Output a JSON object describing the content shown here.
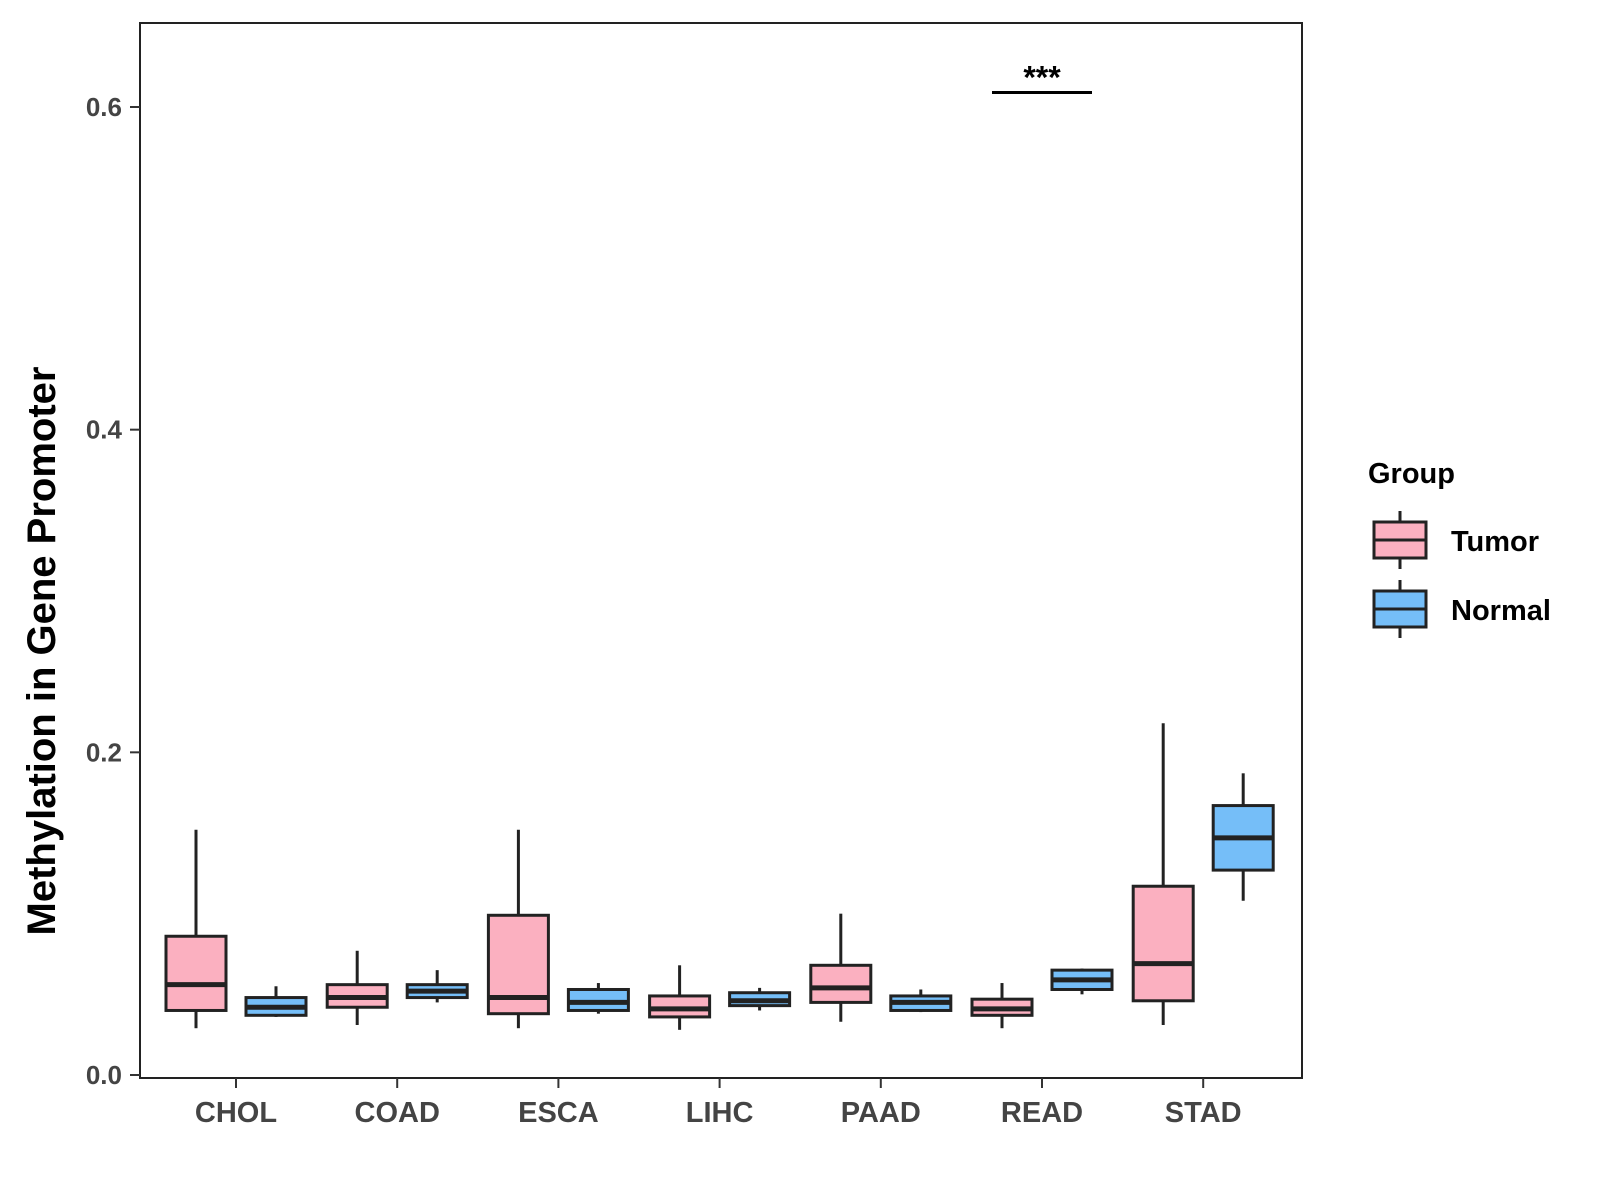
{
  "chart_data": {
    "type": "boxplot",
    "ylabel": "Methylation in Gene Promoter",
    "xlabel": "",
    "ylim": [
      0.0,
      0.65
    ],
    "yticks": [
      "0.0",
      "0.2",
      "0.4",
      "0.6"
    ],
    "categories": [
      "CHOL",
      "COAD",
      "ESCA",
      "LIHC",
      "PAAD",
      "READ",
      "STAD"
    ],
    "legend": {
      "title": "Group",
      "position": "right",
      "entries": [
        {
          "label": "Tumor",
          "color": "#FBB0C0"
        },
        {
          "label": "Normal",
          "color": "#75BEF8"
        }
      ]
    },
    "series": [
      {
        "name": "Tumor",
        "color": "#FBB0C0",
        "boxes": [
          {
            "category": "CHOL",
            "min": 0.029,
            "q1": 0.04,
            "median": 0.056,
            "q3": 0.086,
            "max": 0.152
          },
          {
            "category": "COAD",
            "min": 0.031,
            "q1": 0.042,
            "median": 0.048,
            "q3": 0.056,
            "max": 0.077
          },
          {
            "category": "ESCA",
            "min": 0.029,
            "q1": 0.038,
            "median": 0.048,
            "q3": 0.099,
            "max": 0.152
          },
          {
            "category": "LIHC",
            "min": 0.028,
            "q1": 0.036,
            "median": 0.041,
            "q3": 0.049,
            "max": 0.068
          },
          {
            "category": "PAAD",
            "min": 0.033,
            "q1": 0.045,
            "median": 0.054,
            "q3": 0.068,
            "max": 0.1
          },
          {
            "category": "READ",
            "min": 0.029,
            "q1": 0.037,
            "median": 0.041,
            "q3": 0.047,
            "max": 0.057
          },
          {
            "category": "STAD",
            "min": 0.031,
            "q1": 0.046,
            "median": 0.069,
            "q3": 0.117,
            "max": 0.218
          }
        ]
      },
      {
        "name": "Normal",
        "color": "#75BEF8",
        "boxes": [
          {
            "category": "CHOL",
            "min": 0.036,
            "q1": 0.037,
            "median": 0.042,
            "q3": 0.048,
            "max": 0.055
          },
          {
            "category": "COAD",
            "min": 0.045,
            "q1": 0.048,
            "median": 0.052,
            "q3": 0.056,
            "max": 0.065
          },
          {
            "category": "ESCA",
            "min": 0.038,
            "q1": 0.04,
            "median": 0.045,
            "q3": 0.053,
            "max": 0.057
          },
          {
            "category": "LIHC",
            "min": 0.04,
            "q1": 0.043,
            "median": 0.046,
            "q3": 0.051,
            "max": 0.054
          },
          {
            "category": "PAAD",
            "min": 0.039,
            "q1": 0.04,
            "median": 0.045,
            "q3": 0.049,
            "max": 0.053
          },
          {
            "category": "READ",
            "min": 0.05,
            "q1": 0.053,
            "median": 0.059,
            "q3": 0.065,
            "max": 0.066
          },
          {
            "category": "STAD",
            "min": 0.108,
            "q1": 0.127,
            "median": 0.147,
            "q3": 0.167,
            "max": 0.187
          }
        ]
      }
    ],
    "annotations": [
      {
        "category": "READ",
        "text": "***",
        "y": 0.609
      }
    ]
  }
}
